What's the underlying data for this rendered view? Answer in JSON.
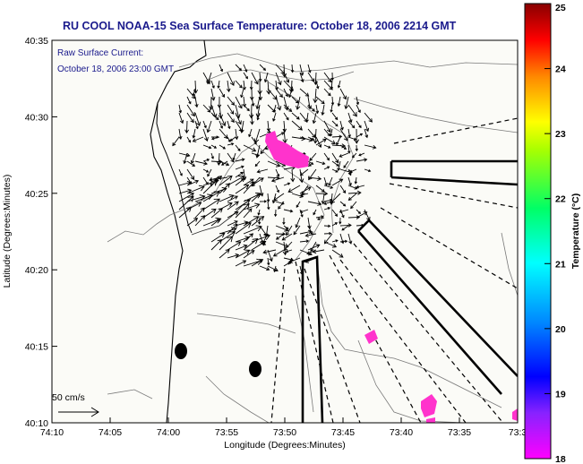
{
  "title": "RU COOL  NOAA-15  Sea Surface Temperature:  October 18, 2006 2214 GMT",
  "current_legend": {
    "line1": "Raw Surface Current:",
    "line2": "October 18, 2006 23:00 GMT"
  },
  "scale_label": "50 cm/s",
  "x_axis": {
    "label": "Longitude (Degrees:Minutes)",
    "ticks": [
      "74:10",
      "74:05",
      "74:00",
      "73:55",
      "73:50",
      "73:45",
      "73:40",
      "73:35",
      "73:3"
    ]
  },
  "y_axis": {
    "label": "Latitude (Degrees:Minutes)",
    "ticks": [
      "40:35",
      "40:30",
      "40:25",
      "40:20",
      "40:15",
      "40:10"
    ]
  },
  "colorbar": {
    "label": "Temperature (°C)",
    "ticks": [
      "25",
      "24",
      "23",
      "22",
      "21",
      "20",
      "19",
      "18"
    ],
    "range": [
      18,
      25
    ]
  },
  "colors": {
    "title": "#1a1a8c",
    "sst_patch": "#ff33cc",
    "land_bg": "#fbfbf7"
  }
}
